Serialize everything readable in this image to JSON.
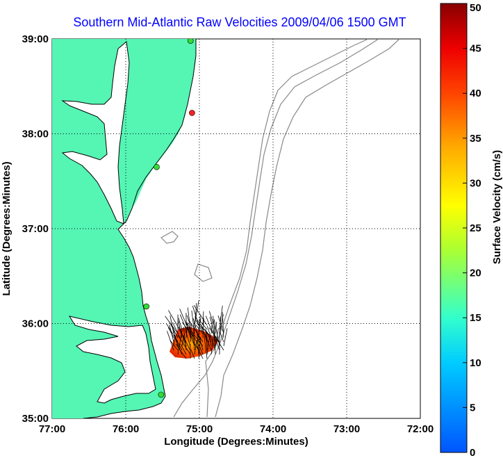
{
  "title": "Southern Mid-Atlantic Raw Velocities 2009/04/06 1500 GMT",
  "map": {
    "xlabel": "Longitude (Degrees:Minutes)",
    "ylabel": "Latitude (Degrees:Minutes)",
    "x_ticks": [
      "77:00",
      "76:00",
      "75:00",
      "74:00",
      "73:00",
      "72:00"
    ],
    "y_ticks": [
      "39:00",
      "38:00",
      "37:00",
      "36:00",
      "35:00"
    ],
    "lon_range": [
      -77,
      -72
    ],
    "lat_range": [
      35,
      39
    ],
    "grid": "dotted",
    "land_color": "#55f5b4",
    "contour_color": "#888888"
  },
  "stations": [
    {
      "lon": -75.12,
      "lat": 38.98,
      "color": "#33dd33"
    },
    {
      "lon": -75.1,
      "lat": 38.22,
      "color": "#ff2222"
    },
    {
      "lon": -75.58,
      "lat": 37.65,
      "color": "#33dd33"
    },
    {
      "lon": -75.72,
      "lat": 36.18,
      "color": "#33dd33"
    },
    {
      "lon": -75.52,
      "lat": 35.25,
      "color": "#33dd33"
    }
  ],
  "colorbar": {
    "label": "Surface Velocity (cm/s)",
    "ticks": [
      "0",
      "5",
      "10",
      "15",
      "20",
      "25",
      "30",
      "35",
      "40",
      "45",
      "50"
    ],
    "min": 0,
    "max": 50,
    "colormap": "jet"
  }
}
